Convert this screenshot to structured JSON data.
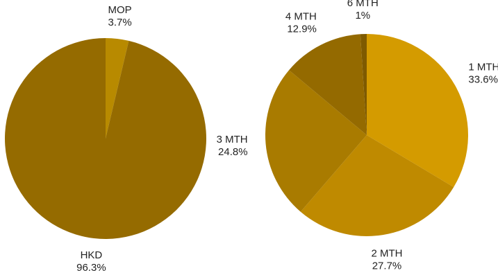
{
  "chart_data": [
    {
      "type": "pie",
      "slices": [
        {
          "label": "MOP",
          "value": 3.7,
          "value_label": "3.7%",
          "color": "#b88a00"
        },
        {
          "label": "HKD",
          "value": 96.3,
          "value_label": "96.3%",
          "color": "#956b00"
        }
      ]
    },
    {
      "type": "pie",
      "slices": [
        {
          "label": "1 MTH",
          "value": 33.6,
          "value_label": "33.6%",
          "color": "#d49b00"
        },
        {
          "label": "2 MTH",
          "value": 27.7,
          "value_label": "27.7%",
          "color": "#bf8a00"
        },
        {
          "label": "3 MTH",
          "value": 24.8,
          "value_label": "24.8%",
          "color": "#a97b00"
        },
        {
          "label": "4 MTH",
          "value": 12.9,
          "value_label": "12.9%",
          "color": "#946a00"
        },
        {
          "label": "6 MTH",
          "value": 1,
          "value_label": "1%",
          "color": "#7e5a00"
        }
      ]
    }
  ]
}
